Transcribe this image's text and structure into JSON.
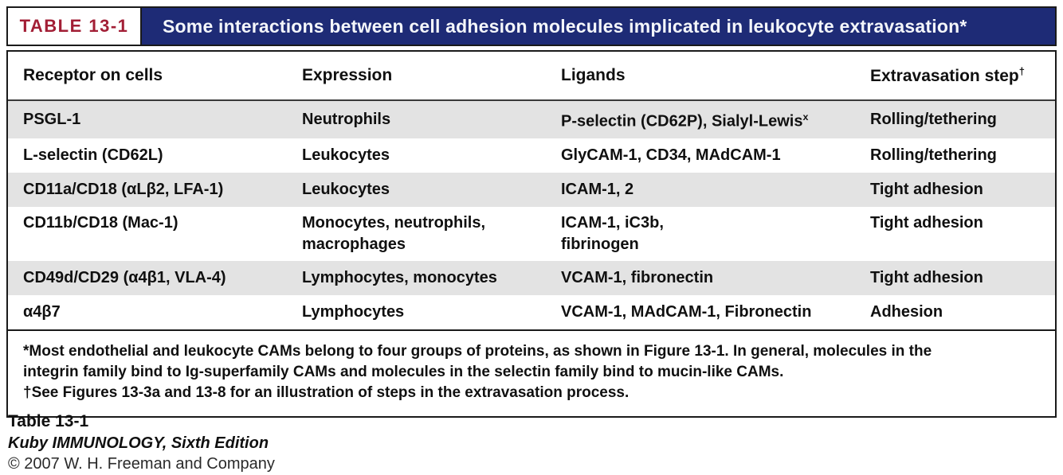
{
  "header": {
    "table_label": "TABLE 13-1",
    "title": "Some interactions between cell adhesion molecules implicated in leukocyte extravasation*"
  },
  "table": {
    "columns": [
      "Receptor on cells",
      "Expression",
      "Ligands",
      "Extravasation step"
    ],
    "extravasation_sup": "†",
    "rows": [
      {
        "receptor": "PSGL-1",
        "expression": "Neutrophils",
        "ligands": "P-selectin (CD62P), Sialyl-Lewis",
        "ligands_sup": "x",
        "step": "Rolling/tethering"
      },
      {
        "receptor": "L-selectin (CD62L)",
        "expression": "Leukocytes",
        "ligands": "GlyCAM-1, CD34, MAdCAM-1",
        "step": "Rolling/tethering"
      },
      {
        "receptor": "CD11a/CD18 (αLβ2, LFA-1)",
        "expression": "Leukocytes",
        "ligands": "ICAM-1, 2",
        "step": "Tight adhesion"
      },
      {
        "receptor": "CD11b/CD18 (Mac-1)",
        "expression": "Monocytes, neutrophils,\nmacrophages",
        "ligands": "ICAM-1, iC3b,\nfibrinogen",
        "step": "Tight adhesion"
      },
      {
        "receptor": "CD49d/CD29 (α4β1, VLA-4)",
        "expression": "Lymphocytes, monocytes",
        "ligands": "VCAM-1, fibronectin",
        "step": "Tight adhesion"
      },
      {
        "receptor": "α4β7",
        "expression": "Lymphocytes",
        "ligands": "VCAM-1, MAdCAM-1, Fibronectin",
        "step": "Adhesion"
      }
    ],
    "footnotes": [
      "*Most endothelial and leukocyte CAMs belong to four groups of proteins, as shown in Figure 13-1. In general, molecules in the integrin family bind to Ig-superfamily CAMs and molecules in the selectin family bind to mucin-like CAMs.",
      "†See Figures 13-3a and 13-8 for an illustration of steps in the extravasation process."
    ]
  },
  "caption": {
    "line1": "Table 13-1",
    "line2": "Kuby IMMUNOLOGY, Sixth Edition",
    "line3": "© 2007 W. H. Freeman and Company"
  },
  "colors": {
    "navy": "#1e2b76",
    "crimson": "#a21e35",
    "row_shade": "#e3e3e3"
  }
}
